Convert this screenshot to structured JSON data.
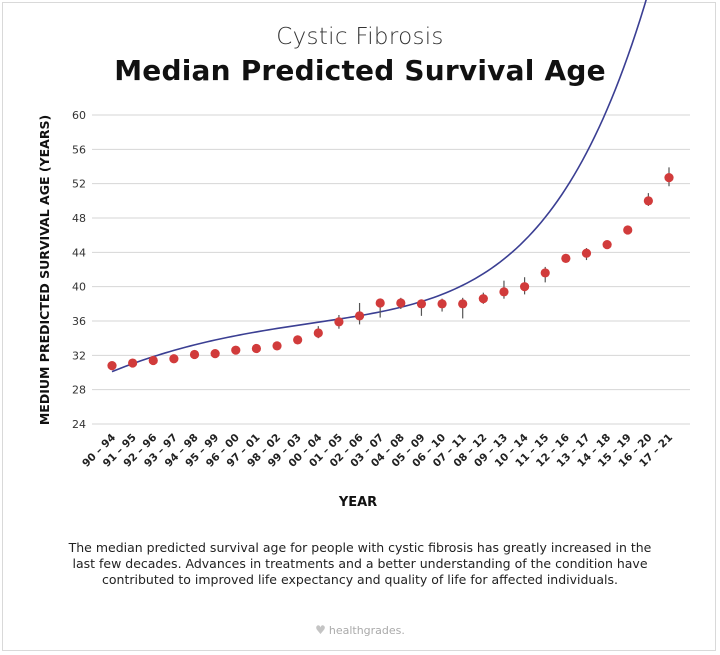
{
  "header": {
    "subtitle": "Cystic Fibrosis",
    "title": "Median Predicted Survival Age"
  },
  "caption": "The median predicted survival age for people with cystic fibrosis has greatly increased in the last few decades. Advances in treatments and a better understanding of the condition have contributed to improved life expectancy and quality of life for affected individuals.",
  "brand": {
    "icon": "heart-icon",
    "text": "healthgrades."
  },
  "colors": {
    "point": "#d13b3b",
    "line": "#3b3f93",
    "error": "#555555",
    "grid": "#d6d6d6"
  },
  "chart_data": {
    "type": "scatter",
    "title": "Median Predicted Survival Age",
    "xlabel": "YEAR",
    "ylabel": "MEDIUM PREDICTED SURVIVAL AGE (YEARS)",
    "ylim": [
      24,
      60
    ],
    "yticks": [
      24,
      28,
      32,
      36,
      40,
      44,
      48,
      52,
      56,
      60
    ],
    "grid": "horizontal",
    "categories": [
      "90 – 94",
      "91 – 95",
      "92 – 96",
      "93 – 97",
      "94 – 98",
      "95 – 99",
      "96 – 00",
      "97 – 01",
      "98 – 02",
      "99 – 03",
      "00 – 04",
      "01 – 05",
      "02 – 06",
      "03 – 07",
      "04 – 08",
      "05 – 09",
      "06 – 10",
      "07 – 11",
      "08 – 12",
      "09 – 13",
      "10 – 14",
      "11 – 15",
      "12 – 16",
      "13 – 17",
      "14 – 18",
      "15 – 19",
      "16 – 20",
      "17 – 21"
    ],
    "values": [
      30.8,
      31.1,
      31.4,
      31.6,
      32.1,
      32.2,
      32.6,
      32.8,
      33.1,
      33.8,
      34.6,
      35.9,
      36.6,
      38.1,
      38.1,
      38.0,
      38.0,
      38.0,
      38.6,
      39.4,
      40.0,
      41.6,
      43.3,
      43.9,
      44.9,
      46.6,
      50.0,
      52.7
    ],
    "error_bars": [
      [
        30.3,
        31.2
      ],
      null,
      [
        31.0,
        31.6
      ],
      [
        31.3,
        31.9
      ],
      null,
      null,
      null,
      null,
      null,
      null,
      [
        34.0,
        35.4
      ],
      [
        35.1,
        36.7
      ],
      [
        35.6,
        38.1
      ],
      [
        36.4,
        38.4
      ],
      [
        37.4,
        38.7
      ],
      [
        36.6,
        38.4
      ],
      [
        37.1,
        38.6
      ],
      [
        36.3,
        38.7
      ],
      [
        38.0,
        39.3
      ],
      [
        38.6,
        40.7
      ],
      [
        39.1,
        41.1
      ],
      [
        40.5,
        42.3
      ],
      null,
      [
        43.1,
        44.5
      ],
      null,
      null,
      [
        49.4,
        50.9
      ],
      [
        51.7,
        53.9
      ]
    ],
    "trendline": "smooth curve"
  }
}
